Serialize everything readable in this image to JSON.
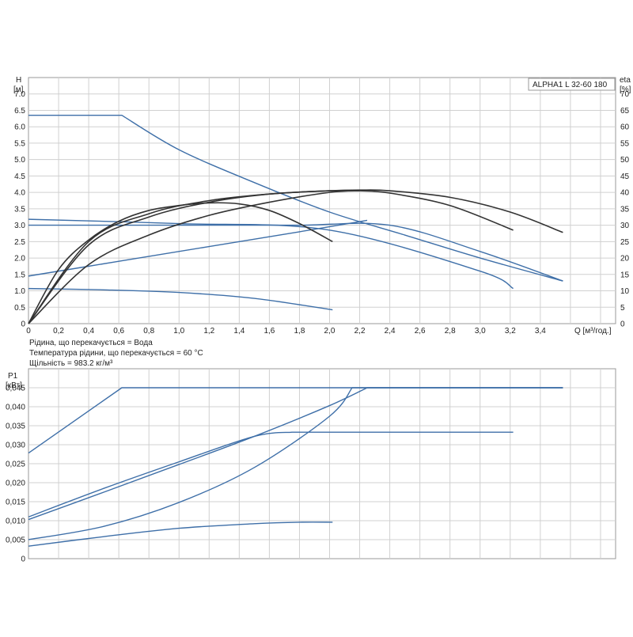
{
  "chart_data": [
    {
      "type": "line",
      "title": "ALPHA1 L 32-60  180",
      "ylabel": "H",
      "yunit": "[м]",
      "y2label": "eta",
      "y2unit": "[%]",
      "xlabel": "Q [м³/год.]",
      "xlim": [
        0,
        3.9
      ],
      "ylim": [
        0,
        7.5
      ],
      "y2lim": [
        0,
        75
      ],
      "grid": true,
      "xticks": [
        "0",
        "0,2",
        "0,4",
        "0,6",
        "0,8",
        "1,0",
        "1,2",
        "1,4",
        "1,6",
        "1,8",
        "2,0",
        "2,2",
        "2,4",
        "2,6",
        "2,8",
        "3,0",
        "3,2",
        "3,4"
      ],
      "yticks": [
        "0",
        "0.5",
        "1.0",
        "1.5",
        "2.0",
        "2.5",
        "3.0",
        "3.5",
        "4.0",
        "4.5",
        "5.0",
        "5.5",
        "6.0",
        "6.5",
        "7.0"
      ],
      "y2ticks": [
        "0",
        "5",
        "10",
        "15",
        "20",
        "25",
        "30",
        "35",
        "40",
        "45",
        "50",
        "55",
        "60",
        "65",
        "70"
      ],
      "series": [
        {
          "color": "#3e6fa8",
          "axis": "left",
          "x": [
            0,
            0.62,
            1.0,
            1.5,
            2.0,
            2.5,
            3.0,
            3.55
          ],
          "values": [
            6.35,
            6.35,
            5.3,
            4.3,
            3.4,
            2.7,
            2.0,
            1.3
          ]
        },
        {
          "color": "#3e6fa8",
          "axis": "left",
          "x": [
            0,
            0.6,
            1.2,
            1.8,
            2.4,
            3.0,
            3.55
          ],
          "values": [
            3.0,
            3.0,
            3.0,
            3.0,
            3.0,
            2.2,
            1.3
          ]
        },
        {
          "color": "#3e6fa8",
          "axis": "left",
          "x": [
            0,
            0.6,
            1.2,
            1.8,
            2.25
          ],
          "values": [
            1.45,
            1.9,
            2.35,
            2.8,
            3.15
          ]
        },
        {
          "color": "#3e6fa8",
          "axis": "left",
          "x": [
            0,
            1.0,
            2.0,
            3.0,
            3.22
          ],
          "values": [
            3.18,
            3.05,
            2.85,
            1.6,
            1.07
          ]
        },
        {
          "color": "#3e6fa8",
          "axis": "left",
          "x": [
            0,
            0.5,
            1.0,
            1.5,
            2.02
          ],
          "values": [
            1.07,
            1.03,
            0.95,
            0.77,
            0.42
          ]
        },
        {
          "color": "#333333",
          "axis": "right",
          "x": [
            0,
            0.2,
            0.4,
            0.6,
            0.8,
            1.0,
            1.2,
            1.4,
            1.6,
            1.8,
            2.02
          ],
          "values": [
            0,
            16.5,
            25.5,
            31.2,
            34.5,
            36.0,
            36.8,
            36.5,
            34.5,
            30.5,
            25.0
          ]
        },
        {
          "color": "#333333",
          "axis": "right",
          "x": [
            0,
            0.4,
            0.8,
            1.2,
            1.6,
            2.0,
            2.2,
            2.4,
            2.8,
            3.22
          ],
          "values": [
            0,
            25.0,
            33.5,
            37.5,
            39.5,
            40.5,
            40.5,
            39.8,
            36.0,
            28.5
          ]
        },
        {
          "color": "#333333",
          "axis": "right",
          "x": [
            0,
            0.4,
            0.8,
            1.2,
            1.6,
            2.0,
            2.2,
            2.4,
            2.8,
            3.2,
            3.55
          ],
          "values": [
            0,
            24.0,
            32.5,
            37.0,
            39.5,
            40.5,
            40.7,
            40.5,
            38.5,
            34.0,
            27.8
          ]
        },
        {
          "color": "#333333",
          "axis": "right",
          "x": [
            0,
            0.4,
            0.8,
            1.2,
            1.6,
            2.0,
            2.2
          ],
          "values": [
            0,
            18.0,
            27.0,
            33.0,
            37.0,
            40.0,
            40.5
          ]
        }
      ]
    },
    {
      "type": "line",
      "ylabel": "P1",
      "yunit": "[кВт]",
      "xlim": [
        0,
        3.9
      ],
      "ylim": [
        0,
        0.05
      ],
      "grid": true,
      "yticks": [
        "0",
        "0,005",
        "0,010",
        "0,015",
        "0,020",
        "0,025",
        "0,030",
        "0,035",
        "0,040",
        "0,045"
      ],
      "series": [
        {
          "color": "#3e6fa8",
          "x": [
            0,
            0.62,
            3.55
          ],
          "values": [
            0.0278,
            0.045,
            0.045
          ]
        },
        {
          "color": "#3e6fa8",
          "x": [
            0,
            0.5,
            1.0,
            1.5,
            2.0,
            2.25
          ],
          "values": [
            0.0103,
            0.0175,
            0.0248,
            0.0322,
            0.0403,
            0.045
          ]
        },
        {
          "color": "#3e6fa8",
          "x": [
            0,
            0.5,
            1.0,
            1.5,
            1.75,
            3.22
          ],
          "values": [
            0.011,
            0.0185,
            0.0255,
            0.0322,
            0.0333,
            0.0333
          ]
        },
        {
          "color": "#3e6fa8",
          "x": [
            0,
            0.5,
            1.0,
            1.5,
            2.0,
            2.15
          ],
          "values": [
            0.005,
            0.0085,
            0.0148,
            0.024,
            0.0375,
            0.045
          ]
        },
        {
          "color": "#3e6fa8",
          "x": [
            0,
            0.5,
            1.0,
            1.5,
            1.8,
            2.02
          ],
          "values": [
            0.0033,
            0.0058,
            0.008,
            0.0092,
            0.0096,
            0.0096
          ]
        }
      ]
    }
  ],
  "info": {
    "line1": "Рідина, що перекачується = Вода",
    "line2": "Температура рідини, що перекачується = 60 °C",
    "line3": "Щільність = 983.2 кг/м³"
  }
}
